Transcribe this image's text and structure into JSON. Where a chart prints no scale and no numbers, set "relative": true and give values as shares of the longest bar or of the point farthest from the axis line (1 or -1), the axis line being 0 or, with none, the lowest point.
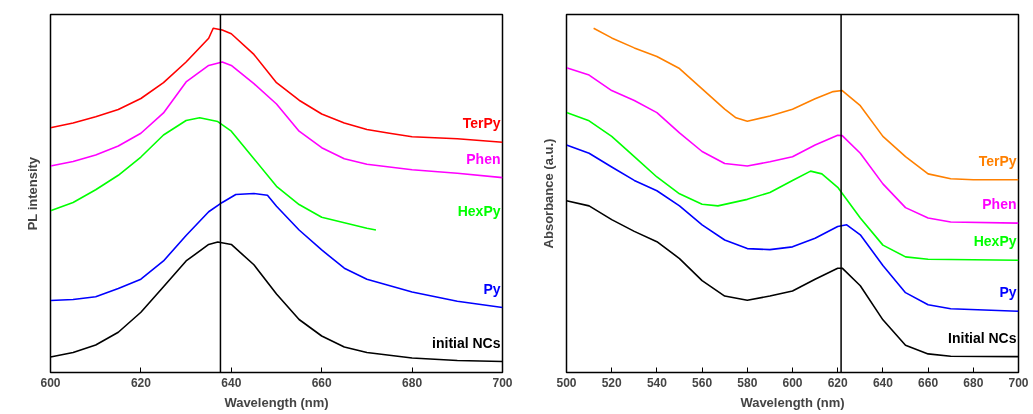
{
  "chart_data": [
    {
      "type": "line",
      "xlabel": "Wavelength (nm)",
      "ylabel": "PL intensity",
      "xlim": [
        600,
        700
      ],
      "xticks": [
        600,
        620,
        640,
        660,
        680,
        700
      ],
      "relative": true,
      "tick_labels": "x",
      "grid": false,
      "legend": false,
      "line_style": "solid",
      "ref_lines": [
        {
          "axis": "x",
          "value": 637.6,
          "color": "#000000"
        }
      ],
      "series": [
        {
          "name": "TerPy",
          "color": "#ff0000",
          "x": [
            600,
            605,
            610,
            615,
            620,
            625,
            630,
            635,
            636,
            638,
            640,
            645,
            650,
            655,
            660,
            665,
            670,
            675,
            680,
            690,
            700
          ],
          "values": [
            0.711,
            0.725,
            0.743,
            0.764,
            0.796,
            0.842,
            0.902,
            0.971,
            1.0,
            0.995,
            0.984,
            0.924,
            0.842,
            0.791,
            0.751,
            0.725,
            0.706,
            0.695,
            0.685,
            0.679,
            0.669
          ]
        },
        {
          "name": "Phen",
          "color": "#ff00ff",
          "x": [
            600,
            605,
            610,
            615,
            620,
            625,
            630,
            635,
            638,
            640,
            645,
            650,
            655,
            660,
            665,
            670,
            680,
            690,
            700
          ],
          "values": [
            0.6,
            0.613,
            0.632,
            0.658,
            0.695,
            0.754,
            0.844,
            0.892,
            0.902,
            0.892,
            0.839,
            0.78,
            0.701,
            0.653,
            0.621,
            0.605,
            0.589,
            0.579,
            0.566
          ]
        },
        {
          "name": "HexPy",
          "color": "#00ff00",
          "x": [
            600,
            605,
            610,
            615,
            620,
            625,
            630,
            633,
            637,
            640,
            645,
            650,
            655,
            660,
            665,
            670,
            672
          ],
          "values": [
            0.47,
            0.494,
            0.531,
            0.573,
            0.626,
            0.69,
            0.732,
            0.74,
            0.729,
            0.701,
            0.621,
            0.541,
            0.488,
            0.451,
            0.435,
            0.419,
            0.414
          ]
        },
        {
          "name": "Py",
          "color": "#0000ff",
          "x": [
            600,
            605,
            610,
            615,
            620,
            625,
            630,
            635,
            638,
            641,
            645,
            648,
            650,
            655,
            660,
            665,
            670,
            680,
            690,
            700
          ],
          "values": [
            0.209,
            0.212,
            0.22,
            0.244,
            0.271,
            0.324,
            0.398,
            0.467,
            0.494,
            0.517,
            0.52,
            0.515,
            0.483,
            0.414,
            0.356,
            0.303,
            0.271,
            0.234,
            0.207,
            0.189
          ]
        },
        {
          "name": "initial NCs",
          "color": "#000000",
          "x": [
            600,
            605,
            610,
            615,
            620,
            625,
            630,
            635,
            637,
            640,
            645,
            650,
            655,
            660,
            665,
            670,
            680,
            690,
            700
          ],
          "values": [
            0.045,
            0.058,
            0.08,
            0.117,
            0.175,
            0.249,
            0.324,
            0.372,
            0.379,
            0.372,
            0.313,
            0.228,
            0.154,
            0.106,
            0.074,
            0.058,
            0.042,
            0.035,
            0.032
          ]
        }
      ]
    },
    {
      "type": "line",
      "xlabel": "Wavelength (nm)",
      "ylabel": "Absorbance (a.u.)",
      "xlim": [
        500,
        700
      ],
      "xticks": [
        500,
        520,
        540,
        560,
        580,
        600,
        620,
        640,
        660,
        680,
        700
      ],
      "relative": true,
      "tick_labels": "x",
      "grid": false,
      "legend": false,
      "line_style": "solid",
      "ref_lines": [
        {
          "axis": "x",
          "value": 621.5,
          "color": "#000000"
        }
      ],
      "series": [
        {
          "name": "TerPy",
          "color": "#ff8000",
          "x": [
            512,
            520,
            530,
            540,
            550,
            560,
            570,
            575,
            580,
            590,
            600,
            610,
            618,
            622,
            630,
            640,
            650,
            660,
            670,
            680,
            700
          ],
          "values": [
            1.0,
            0.972,
            0.943,
            0.918,
            0.883,
            0.824,
            0.765,
            0.74,
            0.73,
            0.745,
            0.765,
            0.795,
            0.816,
            0.819,
            0.775,
            0.686,
            0.627,
            0.577,
            0.563,
            0.56,
            0.56
          ]
        },
        {
          "name": "Phen",
          "color": "#ff00ff",
          "x": [
            500,
            510,
            520,
            530,
            540,
            550,
            560,
            570,
            580,
            590,
            600,
            610,
            620,
            622,
            630,
            640,
            650,
            660,
            670,
            700
          ],
          "values": [
            0.885,
            0.864,
            0.819,
            0.79,
            0.755,
            0.696,
            0.642,
            0.607,
            0.6,
            0.612,
            0.627,
            0.661,
            0.689,
            0.688,
            0.637,
            0.548,
            0.479,
            0.449,
            0.437,
            0.434
          ]
        },
        {
          "name": "HexPy",
          "color": "#00ff00",
          "x": [
            500,
            510,
            520,
            530,
            540,
            550,
            560,
            567,
            580,
            590,
            600,
            608,
            613,
            620,
            630,
            640,
            650,
            660,
            700
          ],
          "values": [
            0.755,
            0.731,
            0.686,
            0.627,
            0.568,
            0.519,
            0.489,
            0.484,
            0.503,
            0.523,
            0.558,
            0.585,
            0.577,
            0.538,
            0.449,
            0.37,
            0.336,
            0.329,
            0.326
          ]
        },
        {
          "name": "Py",
          "color": "#0000ff",
          "x": [
            500,
            510,
            520,
            530,
            540,
            550,
            560,
            570,
            580,
            590,
            600,
            610,
            620,
            624,
            630,
            640,
            650,
            660,
            670,
            700
          ],
          "values": [
            0.661,
            0.637,
            0.597,
            0.558,
            0.528,
            0.484,
            0.429,
            0.385,
            0.36,
            0.357,
            0.365,
            0.39,
            0.424,
            0.429,
            0.4,
            0.311,
            0.232,
            0.197,
            0.185,
            0.178
          ]
        },
        {
          "name": "Initial NCs",
          "color": "#000000",
          "x": [
            500,
            510,
            520,
            530,
            540,
            550,
            560,
            570,
            580,
            590,
            600,
            610,
            620,
            622,
            630,
            640,
            650,
            660,
            670,
            700
          ],
          "values": [
            0.499,
            0.484,
            0.444,
            0.41,
            0.38,
            0.331,
            0.267,
            0.222,
            0.21,
            0.222,
            0.237,
            0.271,
            0.303,
            0.303,
            0.252,
            0.153,
            0.079,
            0.054,
            0.047,
            0.046
          ]
        }
      ]
    }
  ]
}
